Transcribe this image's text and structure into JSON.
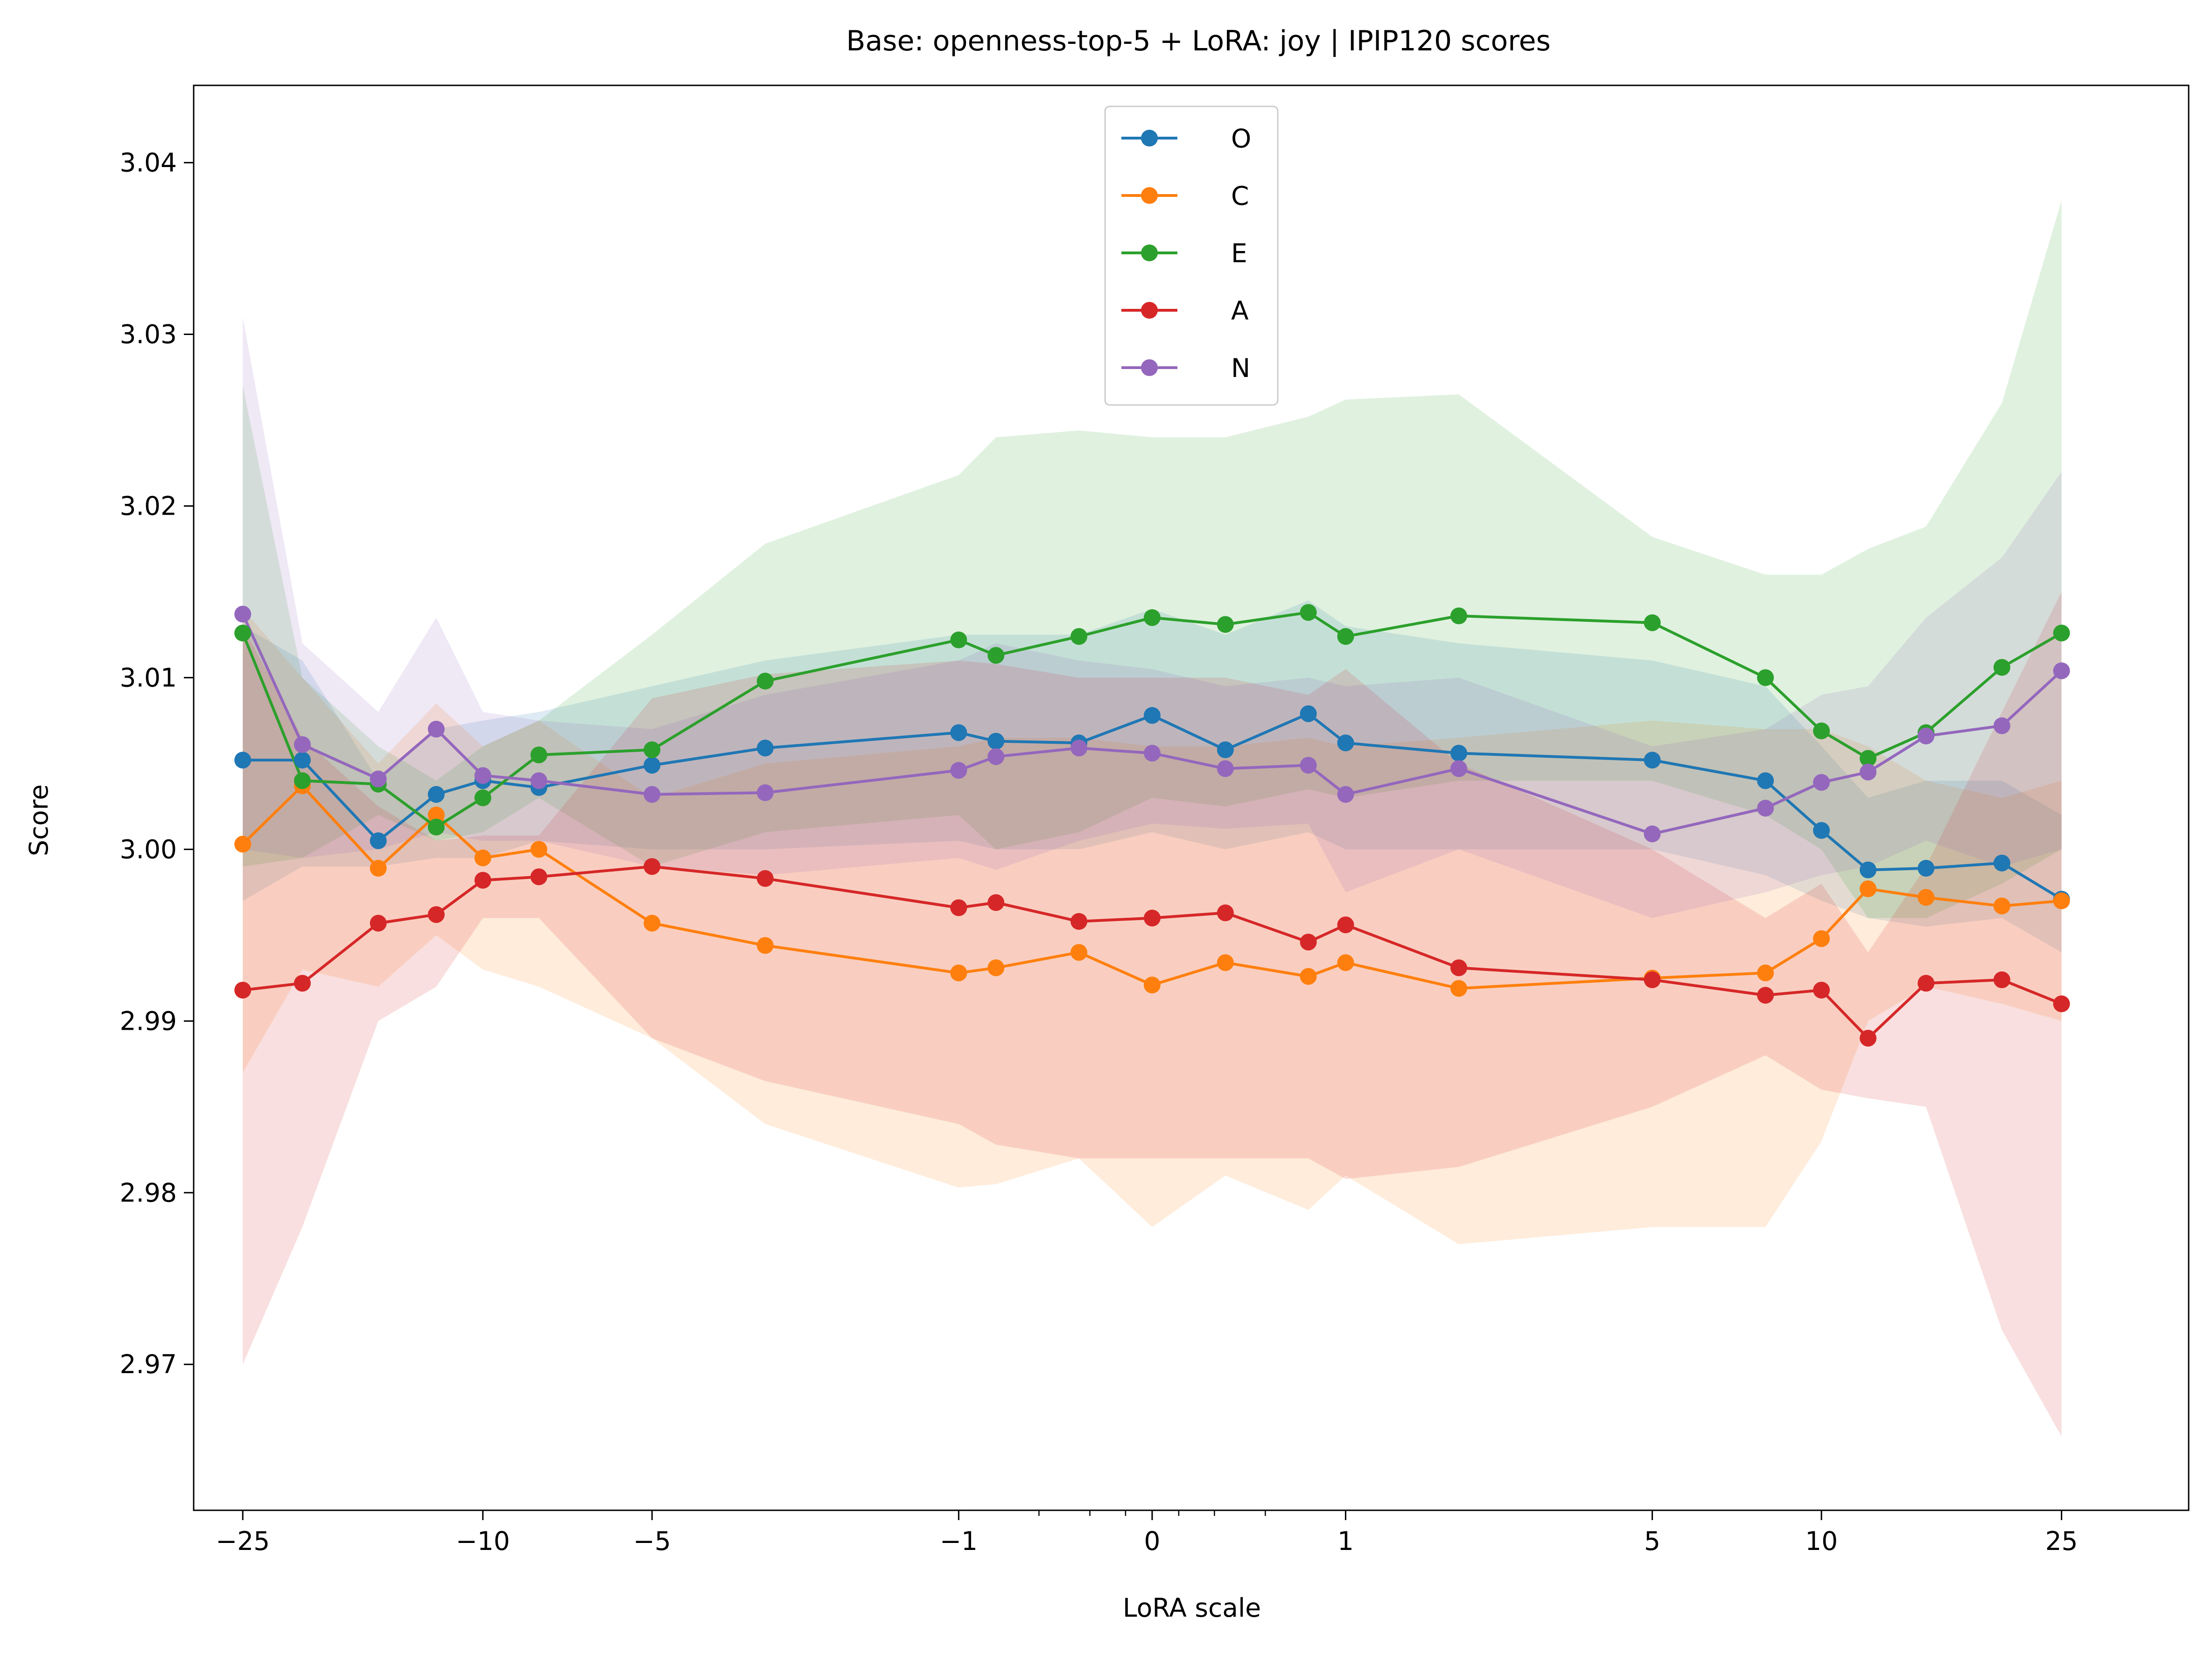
{
  "chart_data": {
    "type": "line",
    "title": "Base: openness-top-5 + LoRA: joy | IPIP120 scores",
    "xlabel": "LoRA scale",
    "ylabel": "Score",
    "xscale": "symlog",
    "xlim": [
      -30,
      40
    ],
    "ylim": [
      2.9615,
      3.0445
    ],
    "xticks": [
      {
        "value": -25,
        "label": "−25"
      },
      {
        "value": -10,
        "label": "−10"
      },
      {
        "value": -5,
        "label": "−5"
      },
      {
        "value": -1,
        "label": "−1"
      },
      {
        "value": 0,
        "label": "0"
      },
      {
        "value": 1,
        "label": "1"
      },
      {
        "value": 5,
        "label": "5"
      },
      {
        "value": 10,
        "label": "10"
      },
      {
        "value": 25,
        "label": "25"
      }
    ],
    "minor_xticks": [
      -0.5,
      -0.25,
      -0.1,
      0.1,
      0.25,
      0.5
    ],
    "yticks": [
      {
        "value": 2.97,
        "label": "2.97"
      },
      {
        "value": 2.98,
        "label": "2.98"
      },
      {
        "value": 2.99,
        "label": "2.99"
      },
      {
        "value": 3.0,
        "label": "3.00"
      },
      {
        "value": 3.01,
        "label": "3.01"
      },
      {
        "value": 3.02,
        "label": "3.02"
      },
      {
        "value": 3.03,
        "label": "3.03"
      },
      {
        "value": 3.04,
        "label": "3.04"
      }
    ],
    "grid": false,
    "legend_position": "top-center",
    "x": [
      -25,
      -20,
      -15,
      -12,
      -10,
      -8,
      -5,
      -3,
      -1,
      -0.75,
      -0.3,
      0,
      0.3,
      0.75,
      1,
      2,
      5,
      8,
      10,
      12,
      15,
      20,
      25
    ],
    "series": [
      {
        "name": "O",
        "color": "#1f77b4",
        "values": [
          3.0052,
          3.0052,
          3.0005,
          3.0032,
          3.004,
          3.0036,
          3.0049,
          3.0059,
          3.0068,
          3.0063,
          3.0062,
          3.0078,
          3.0058,
          3.0079,
          3.0062,
          3.0056,
          3.0052,
          3.004,
          3.0011,
          2.9988,
          2.9989,
          2.9992,
          2.9971
        ],
        "lower": [
          2.997,
          2.999,
          2.999,
          2.9995,
          2.9995,
          3.0005,
          3.0,
          3.0,
          3.0005,
          3.0,
          3.0,
          3.001,
          3.0,
          3.001,
          3.0,
          3.0,
          3.0,
          2.9985,
          2.997,
          2.996,
          2.9955,
          2.996,
          2.994
        ],
        "upper": [
          3.013,
          3.011,
          3.004,
          3.007,
          3.0075,
          3.008,
          3.0095,
          3.011,
          3.0125,
          3.0125,
          3.0125,
          3.014,
          3.0125,
          3.0145,
          3.013,
          3.012,
          3.011,
          3.0095,
          3.006,
          3.003,
          3.004,
          3.004,
          3.002
        ]
      },
      {
        "name": "C",
        "color": "#ff7f0e",
        "values": [
          3.0003,
          3.0037,
          2.9989,
          3.002,
          2.9995,
          3.0,
          2.9957,
          2.9944,
          2.9928,
          2.9931,
          2.994,
          2.9921,
          2.9934,
          2.9926,
          2.9934,
          2.9919,
          2.9925,
          2.9928,
          2.9948,
          2.9977,
          2.9972,
          2.9967,
          2.997
        ],
        "lower": [
          2.987,
          2.993,
          2.992,
          2.995,
          2.993,
          2.992,
          2.989,
          2.984,
          2.9803,
          2.9805,
          2.982,
          2.978,
          2.981,
          2.979,
          2.981,
          2.977,
          2.978,
          2.978,
          2.983,
          2.99,
          2.992,
          2.991,
          2.99
        ],
        "upper": [
          3.014,
          3.01,
          3.005,
          3.0085,
          3.006,
          3.0075,
          3.003,
          3.005,
          3.006,
          3.0065,
          3.0065,
          3.006,
          3.006,
          3.0065,
          3.006,
          3.0065,
          3.0075,
          3.007,
          3.007,
          3.006,
          3.004,
          3.003,
          3.004
        ]
      },
      {
        "name": "E",
        "color": "#2ca02c",
        "values": [
          3.0126,
          3.004,
          3.0038,
          3.0013,
          3.003,
          3.0055,
          3.0058,
          3.0098,
          3.0122,
          3.0113,
          3.0124,
          3.0135,
          3.0131,
          3.0138,
          3.0124,
          3.0136,
          3.0132,
          3.01,
          3.0069,
          3.0053,
          3.0068,
          3.0106,
          3.0126
        ],
        "lower": [
          2.999,
          2.9995,
          3.002,
          3.0005,
          3.001,
          3.003,
          2.999,
          3.001,
          3.002,
          3.0,
          3.001,
          3.003,
          3.0025,
          3.0035,
          3.003,
          3.004,
          3.004,
          3.002,
          3.0,
          2.996,
          2.996,
          2.998,
          3.0
        ],
        "upper": [
          3.027,
          3.01,
          3.006,
          3.004,
          3.006,
          3.0075,
          3.0125,
          3.0178,
          3.0218,
          3.024,
          3.0244,
          3.024,
          3.024,
          3.0252,
          3.0262,
          3.0265,
          3.0182,
          3.016,
          3.016,
          3.0175,
          3.0188,
          3.026,
          3.0378
        ]
      },
      {
        "name": "A",
        "color": "#d62728",
        "values": [
          2.9918,
          2.9922,
          2.9957,
          2.9962,
          2.9982,
          2.9984,
          2.999,
          2.9983,
          2.9966,
          2.9969,
          2.9958,
          2.996,
          2.9963,
          2.9946,
          2.9956,
          2.9931,
          2.9924,
          2.9915,
          2.9918,
          2.989,
          2.9922,
          2.9924,
          2.991
        ],
        "lower": [
          2.97,
          2.978,
          2.99,
          2.992,
          2.996,
          2.996,
          2.989,
          2.9865,
          2.984,
          2.9828,
          2.982,
          2.982,
          2.982,
          2.982,
          2.9808,
          2.9815,
          2.985,
          2.988,
          2.986,
          2.9855,
          2.985,
          2.972,
          2.9658
        ],
        "upper": [
          3.013,
          3.0065,
          3.0025,
          3.0005,
          3.0008,
          3.0008,
          3.0088,
          3.0102,
          3.011,
          3.0108,
          3.01,
          3.01,
          3.01,
          3.009,
          3.0105,
          3.005,
          3.0,
          2.996,
          2.998,
          2.994,
          2.999,
          3.008,
          3.015
        ]
      },
      {
        "name": "N",
        "color": "#9467bd",
        "values": [
          3.0137,
          3.0061,
          3.0041,
          3.007,
          3.0043,
          3.004,
          3.0032,
          3.0033,
          3.0046,
          3.0054,
          3.0059,
          3.0056,
          3.0047,
          3.0049,
          3.0032,
          3.0047,
          3.0009,
          3.0024,
          3.0039,
          3.0045,
          3.0066,
          3.0072,
          3.0104
        ],
        "lower": [
          3.0,
          2.9995,
          3.0,
          3.001,
          3.0005,
          3.0005,
          2.999,
          2.9985,
          2.9995,
          2.9988,
          3.0005,
          3.0015,
          3.0012,
          3.0015,
          2.9975,
          3.0,
          2.996,
          2.9975,
          2.9985,
          2.999,
          3.0005,
          2.999,
          3.0
        ],
        "upper": [
          3.031,
          3.012,
          3.008,
          3.0135,
          3.008,
          3.0075,
          3.007,
          3.009,
          3.011,
          3.012,
          3.011,
          3.0105,
          3.0095,
          3.01,
          3.0095,
          3.01,
          3.006,
          3.007,
          3.009,
          3.0095,
          3.0135,
          3.017,
          3.022
        ]
      }
    ]
  }
}
